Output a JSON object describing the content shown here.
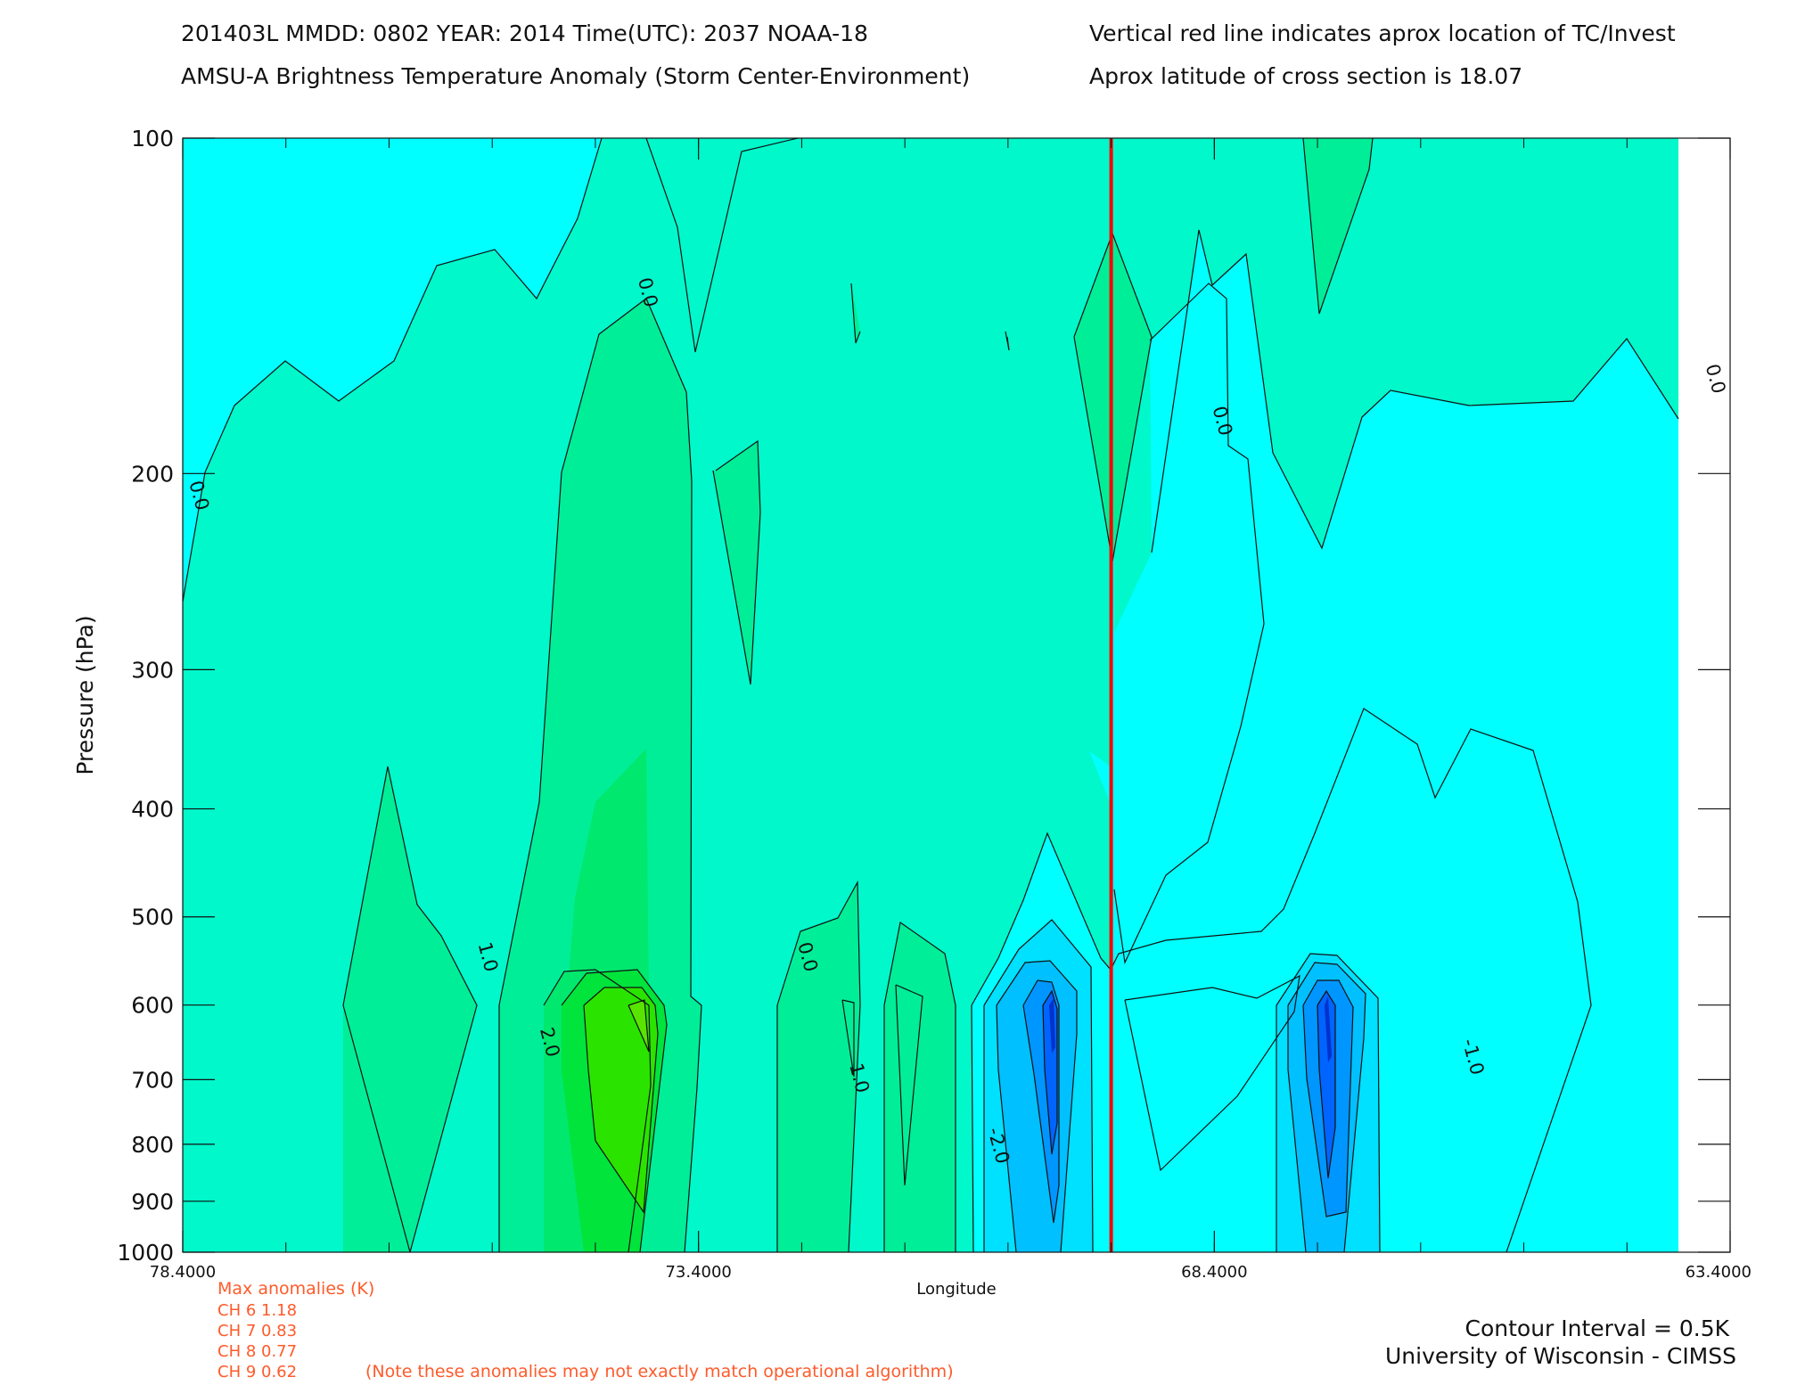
{
  "header": {
    "line1_left": "201403L  MMDD: 0802 YEAR: 2014 Time(UTC): 2037 NOAA-18",
    "line2_left": "AMSU-A Brightness Temperature Anomaly (Storm Center-Environment)",
    "line1_right": "Vertical red line indicates aprox location of TC/Invest",
    "line2_right": "Aprox latitude of cross section is 18.07"
  },
  "footer": {
    "max_title": "Max anomalies (K)",
    "channels": [
      "CH 6  1.18",
      "CH 7  0.83",
      "CH 8  0.77",
      "CH 9  0.62"
    ],
    "note": "(Note these anomalies may not exactly match operational algorithm)",
    "contour_interval": "Contour Interval = 0.5K",
    "credit": "University of Wisconsin - CIMSS"
  },
  "colors": {
    "background_field": "#00ffff",
    "level_0_0": "#00f8cb",
    "level_0_5": "#00ee98",
    "level_1_0": "#00e86d",
    "level_1_5": "#00e43c",
    "level_2_0": "#2ae400",
    "neg_0_5": "#00ffff",
    "neg_1_0": "#00e0ff",
    "neg_1_5": "#00c0ff",
    "neg_2_0": "#0096ff",
    "neg_2_5": "#0064ff",
    "neg_3_0": "#0032cc",
    "storm_line": "#ff0000",
    "annotation_text": "#ff5a2a"
  },
  "chart_data": {
    "type": "heatmap",
    "subtype": "filled-contour cross section",
    "xlabel": "Longitude",
    "ylabel": "Pressure (hPa)",
    "x_ticks": [
      "78.4000",
      "73.4000",
      "68.4000",
      "63.4000"
    ],
    "y_ticks": [
      "100",
      "200",
      "300",
      "400",
      "500",
      "600",
      "700",
      "800",
      "900",
      "1000"
    ],
    "xlim": [
      78.4,
      63.4
    ],
    "ylim": [
      1000,
      100
    ],
    "y_scale": "log",
    "storm_center_longitude": 69.4,
    "contour_labels": [
      {
        "text": "0.0",
        "lon": 73.95,
        "p": 138
      },
      {
        "text": "0.0",
        "lon": 78.3,
        "p": 210
      },
      {
        "text": "0.0",
        "lon": 68.38,
        "p": 180
      },
      {
        "text": "0.0",
        "lon": 63.6,
        "p": 165
      },
      {
        "text": "1.0",
        "lon": 75.5,
        "p": 545
      },
      {
        "text": "2.0",
        "lon": 74.9,
        "p": 650
      },
      {
        "text": "0.0",
        "lon": 72.4,
        "p": 545
      },
      {
        "text": "1.0",
        "lon": 71.9,
        "p": 700
      },
      {
        "text": "-2.0",
        "lon": 70.55,
        "p": 805
      },
      {
        "text": "-1.0",
        "lon": 65.95,
        "p": 670
      }
    ]
  }
}
